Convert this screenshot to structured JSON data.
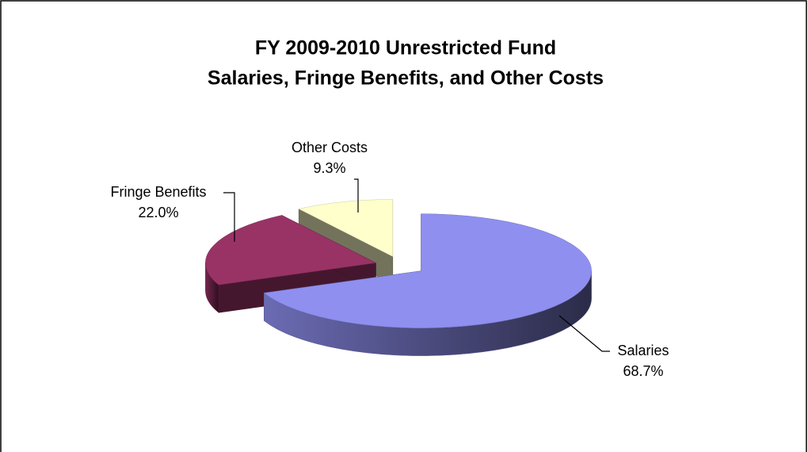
{
  "chart_data": {
    "type": "pie3d",
    "title": [
      "FY 2009-2010 Unrestricted Fund",
      "Salaries, Fringe Benefits, and Other Costs"
    ],
    "categories": [
      "Salaries",
      "Fringe Benefits",
      "Other Costs"
    ],
    "values": [
      68.7,
      22.0,
      9.3
    ],
    "value_labels": [
      "68.7%",
      "22.0%",
      "9.3%"
    ],
    "colors": [
      "#8f8ff0",
      "#993366",
      "#ffffcc"
    ]
  }
}
